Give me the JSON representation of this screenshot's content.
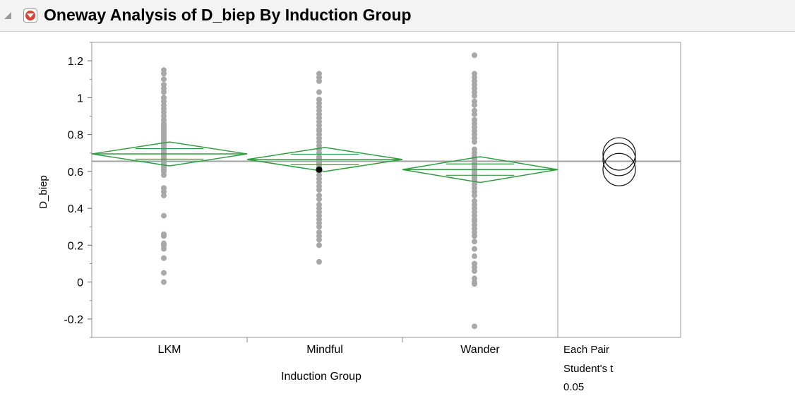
{
  "window": {
    "title": "Oneway Analysis of D_biep By Induction Group"
  },
  "comparison_panel": {
    "label_line1": "Each Pair",
    "label_line2": "Student's t",
    "label_line3": "0.05"
  },
  "colors": {
    "points": "#a8a8a8",
    "diamonds": "#2e9e3e",
    "grand_mean": "#a0a0a0",
    "highlight_point": "#000000",
    "red_menu": "#d4453a"
  },
  "chart_data": {
    "type": "scatter",
    "title": "Oneway Analysis of D_biep By Induction Group",
    "xlabel": "Induction Group",
    "ylabel": "D_biep",
    "categories": [
      "LKM",
      "Mindful",
      "Wander"
    ],
    "ylim": [
      -0.3,
      1.3
    ],
    "yticks": [
      -0.2,
      0,
      0.2,
      0.4,
      0.6,
      0.8,
      1,
      1.2
    ],
    "ytick_labels": [
      "-0.2",
      "0",
      "0.2",
      "0.4",
      "0.6",
      "0.8",
      "1",
      "1.2"
    ],
    "grand_mean": 0.655,
    "grid": false,
    "groups": [
      {
        "name": "LKM",
        "mean": 0.695,
        "ci_lower": 0.63,
        "ci_upper": 0.76,
        "points": [
          1.15,
          1.13,
          1.1,
          1.07,
          1.05,
          1.03,
          1.0,
          0.98,
          0.96,
          0.94,
          0.92,
          0.9,
          0.88,
          0.86,
          0.85,
          0.84,
          0.83,
          0.82,
          0.81,
          0.8,
          0.79,
          0.78,
          0.77,
          0.76,
          0.75,
          0.74,
          0.73,
          0.72,
          0.71,
          0.7,
          0.69,
          0.68,
          0.67,
          0.66,
          0.65,
          0.64,
          0.63,
          0.62,
          0.61,
          0.6,
          0.58,
          0.51,
          0.49,
          0.47,
          0.36,
          0.26,
          0.25,
          0.21,
          0.2,
          0.18,
          0.13,
          0.05,
          0.0
        ]
      },
      {
        "name": "Mindful",
        "mean": 0.665,
        "ci_lower": 0.6,
        "ci_upper": 0.73,
        "points": [
          1.13,
          1.11,
          1.09,
          1.03,
          0.99,
          0.97,
          0.95,
          0.93,
          0.91,
          0.89,
          0.87,
          0.85,
          0.83,
          0.82,
          0.8,
          0.78,
          0.76,
          0.74,
          0.72,
          0.7,
          0.68,
          0.67,
          0.66,
          0.65,
          0.64,
          0.63,
          0.62,
          0.61,
          0.6,
          0.58,
          0.56,
          0.54,
          0.52,
          0.5,
          0.47,
          0.45,
          0.42,
          0.4,
          0.38,
          0.36,
          0.34,
          0.32,
          0.3,
          0.27,
          0.25,
          0.23,
          0.2,
          0.11
        ],
        "highlight": 0.61
      },
      {
        "name": "Wander",
        "mean": 0.61,
        "ci_lower": 0.54,
        "ci_upper": 0.68,
        "points": [
          1.23,
          1.13,
          1.11,
          1.09,
          1.07,
          1.05,
          1.03,
          1.01,
          0.98,
          0.96,
          0.93,
          0.91,
          0.88,
          0.86,
          0.84,
          0.82,
          0.8,
          0.78,
          0.76,
          0.72,
          0.7,
          0.68,
          0.67,
          0.66,
          0.65,
          0.64,
          0.63,
          0.62,
          0.61,
          0.6,
          0.59,
          0.58,
          0.57,
          0.56,
          0.55,
          0.53,
          0.51,
          0.49,
          0.47,
          0.44,
          0.42,
          0.4,
          0.38,
          0.36,
          0.34,
          0.33,
          0.31,
          0.29,
          0.27,
          0.25,
          0.22,
          0.18,
          0.14,
          0.1,
          0.08,
          0.06,
          0.02,
          0.0,
          -0.01,
          -0.24
        ]
      }
    ],
    "comparison_circles": [
      {
        "name": "LKM",
        "center": 0.695
      },
      {
        "name": "Mindful",
        "center": 0.665
      },
      {
        "name": "Wander",
        "center": 0.61
      }
    ]
  }
}
